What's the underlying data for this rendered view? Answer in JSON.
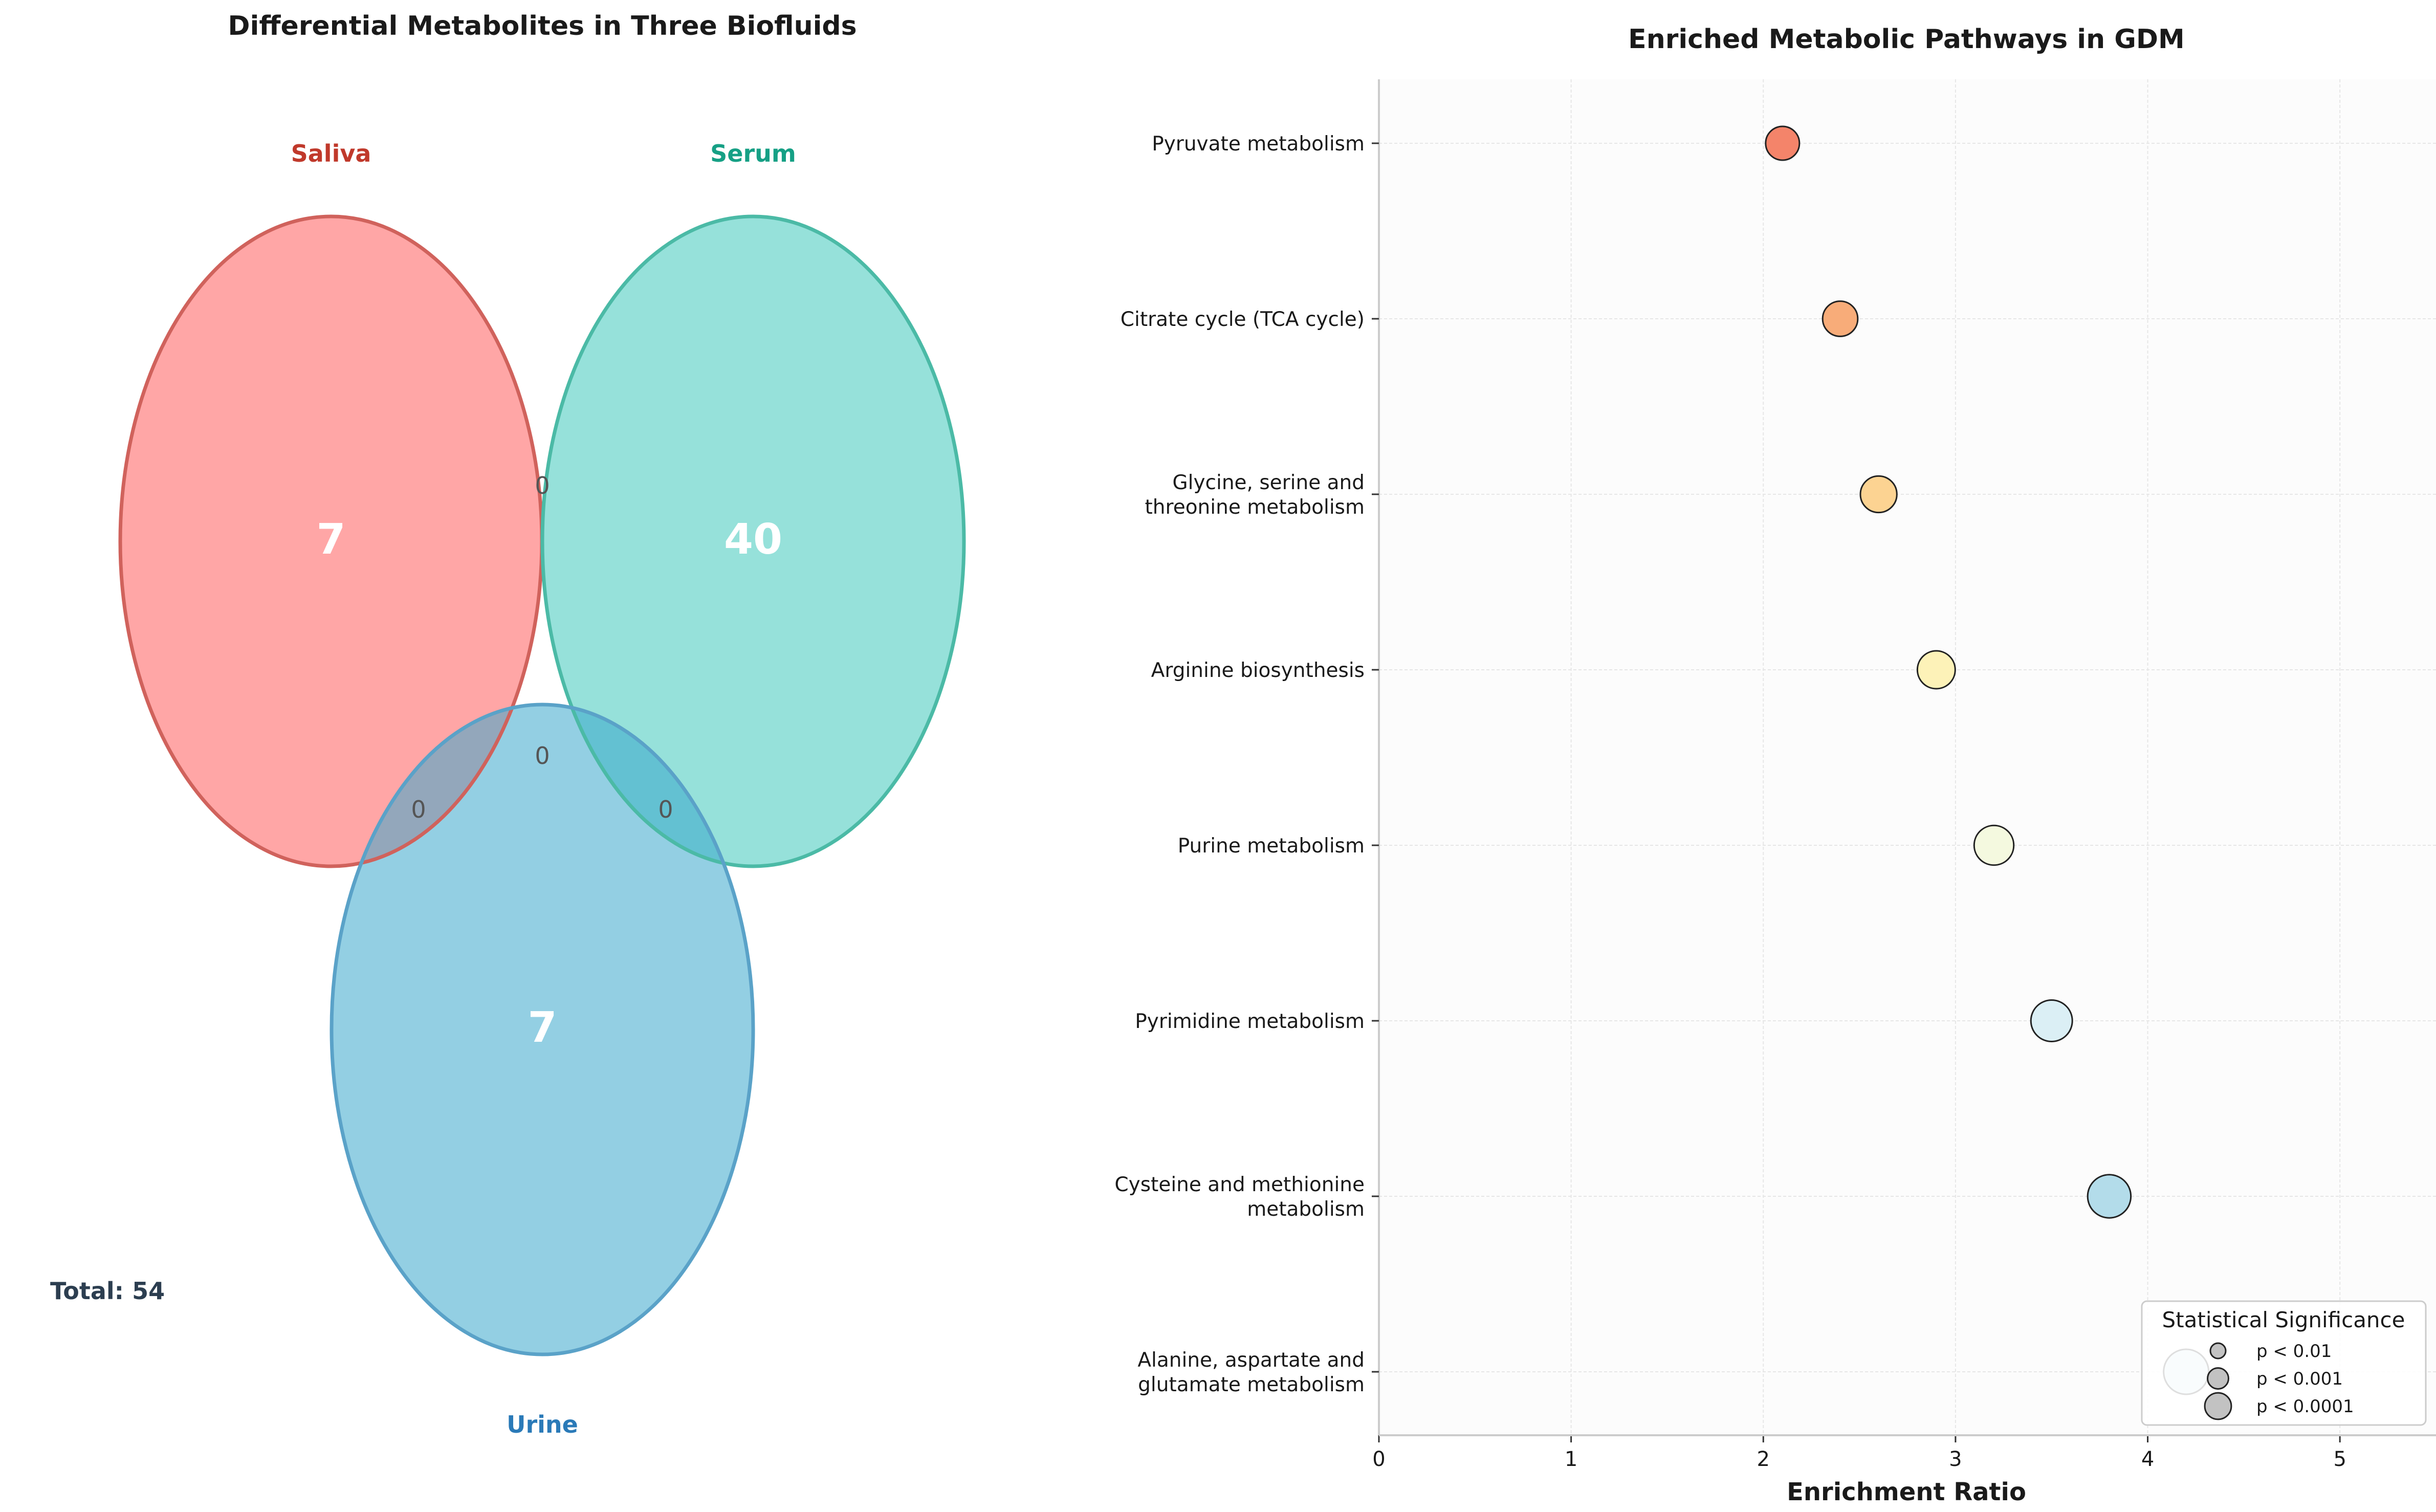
{
  "chart_data": [
    {
      "type": "venn",
      "title": "Differential Metabolites in Three Biofluids",
      "sets": [
        {
          "name": "Saliva",
          "color": "#ff6b6b",
          "label_color": "#c0392b"
        },
        {
          "name": "Serum",
          "color": "#2ec4b6",
          "label_color": "#16a085"
        },
        {
          "name": "Urine",
          "color": "#3aa8cc",
          "label_color": "#2a7ab8"
        }
      ],
      "regions": {
        "saliva_only": "7",
        "serum_only": "40",
        "urine_only": "7",
        "saliva_serum": "0",
        "saliva_urine": "0",
        "serum_urine": "0",
        "all_three": "0"
      },
      "total_label": "Total: 54"
    },
    {
      "type": "scatter",
      "title": "Enriched Metabolic Pathways in GDM",
      "xlabel": "Enrichment Ratio",
      "ylabel": "",
      "xlim": [
        0,
        5.5
      ],
      "xticks": [
        "0",
        "1",
        "2",
        "3",
        "4",
        "5"
      ],
      "grid": true,
      "pathways": [
        {
          "label_lines": [
            "Pyruvate metabolism"
          ],
          "x": 2.1,
          "size": 0.75,
          "color": "#f4846a"
        },
        {
          "label_lines": [
            "Citrate cycle (TCA cycle)"
          ],
          "x": 2.4,
          "size": 0.78,
          "color": "#f8ac79"
        },
        {
          "label_lines": [
            "Glycine, serine and",
            "threonine metabolism"
          ],
          "x": 2.6,
          "size": 0.81,
          "color": "#fcd392"
        },
        {
          "label_lines": [
            "Arginine biosynthesis"
          ],
          "x": 2.9,
          "size": 0.84,
          "color": "#fdf2b8"
        },
        {
          "label_lines": [
            "Purine metabolism"
          ],
          "x": 3.2,
          "size": 0.88,
          "color": "#f4f9df"
        },
        {
          "label_lines": [
            "Pyrimidine metabolism"
          ],
          "x": 3.5,
          "size": 0.92,
          "color": "#dbeff5"
        },
        {
          "label_lines": [
            "Cysteine and methionine",
            "metabolism"
          ],
          "x": 3.8,
          "size": 0.96,
          "color": "#b3dcea"
        },
        {
          "label_lines": [
            "Alanine, aspartate and",
            "glutamate metabolism"
          ],
          "x": 4.2,
          "size": 1.0,
          "color": "#d7e7ef"
        }
      ],
      "legend": {
        "title": "Statistical Significance",
        "placement": "bottom-right",
        "entries": [
          {
            "label": "p < 0.01",
            "size": 0.55
          },
          {
            "label": "p < 0.001",
            "size": 0.75
          },
          {
            "label": "p < 0.0001",
            "size": 0.95
          }
        ]
      }
    }
  ]
}
